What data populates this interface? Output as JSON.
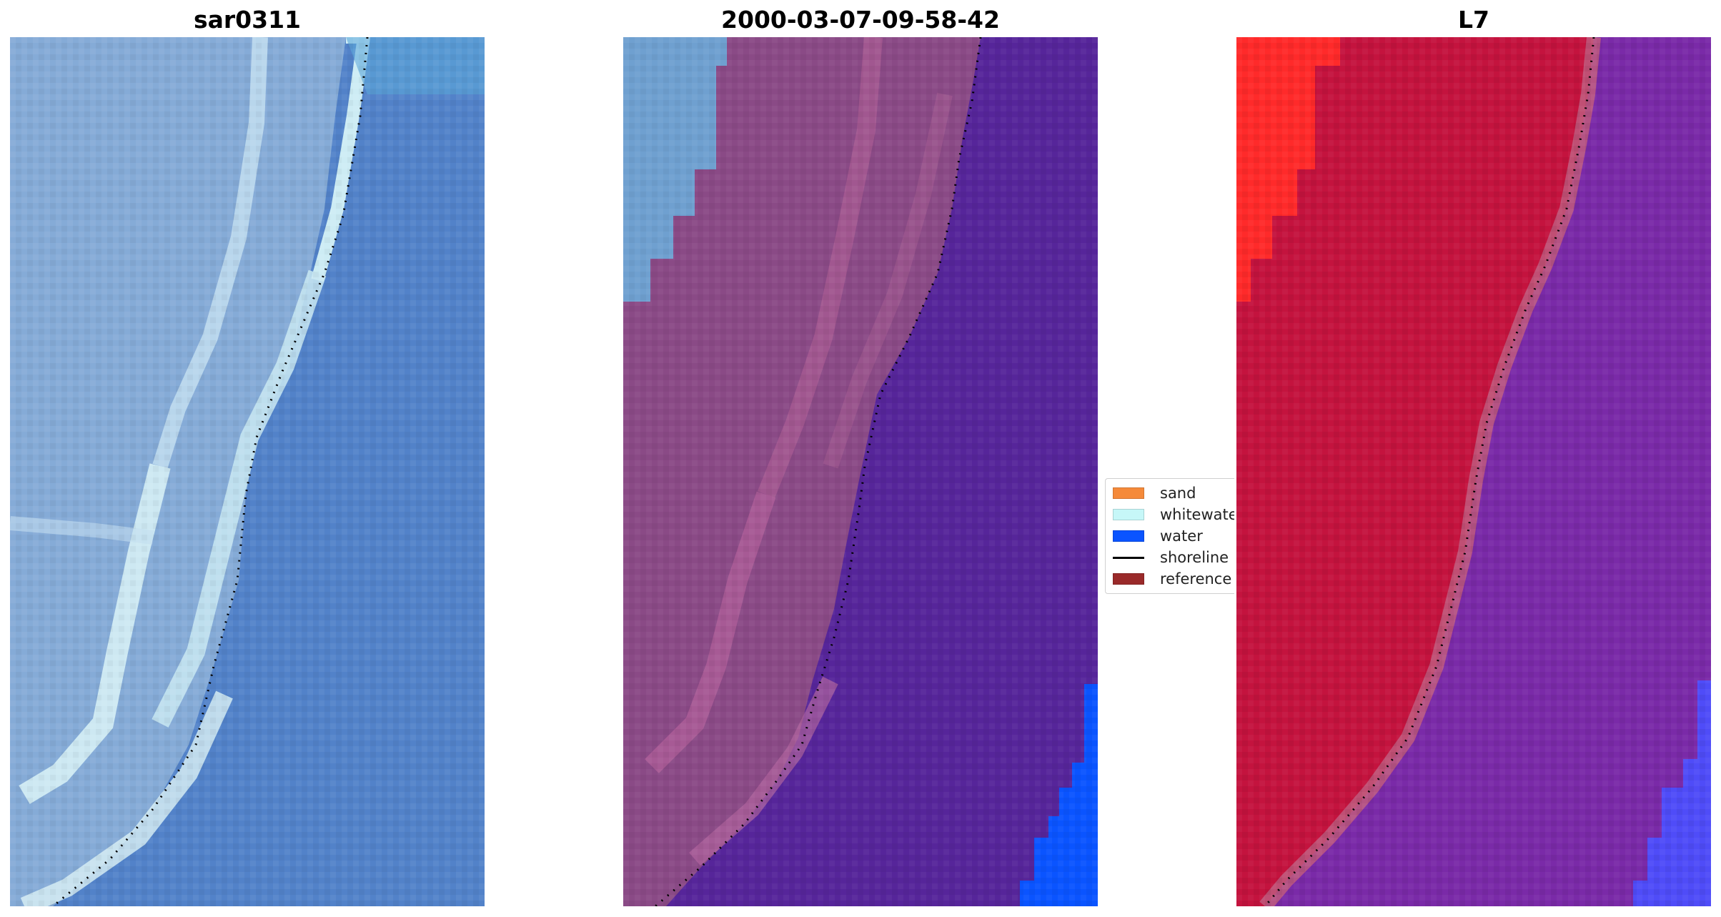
{
  "panels": [
    {
      "title": "sar0311",
      "kind": "rgb"
    },
    {
      "title": "2000-03-07-09-58-42",
      "kind": "classified"
    },
    {
      "title": "L7",
      "kind": "index"
    }
  ],
  "legend": {
    "items": [
      {
        "label": "sand",
        "color": "#f58a3a",
        "type": "patch"
      },
      {
        "label": "whitewater",
        "color": "#c6f7f8",
        "type": "patch"
      },
      {
        "label": "water",
        "color": "#0a54ff",
        "type": "patch"
      },
      {
        "label": "shoreline",
        "color": "#000000",
        "type": "line"
      },
      {
        "label": "reference s",
        "color": "#9a2a2a",
        "type": "patch"
      }
    ]
  },
  "colors": {
    "land_rgb": "#7fa7d4",
    "water_rgb": "#4f80c8",
    "surf_rgb": "#d9f0f5",
    "land_classified": "#8a4a86",
    "water_classified": "#56259a",
    "sky_classified": "#6fa0d0",
    "water_patch": "#0a54ff",
    "land_index": "#c4133e",
    "land_index_bright": "#ff2a2a",
    "water_index": "#7a2aa8",
    "water_index_blue": "#4444ff"
  }
}
